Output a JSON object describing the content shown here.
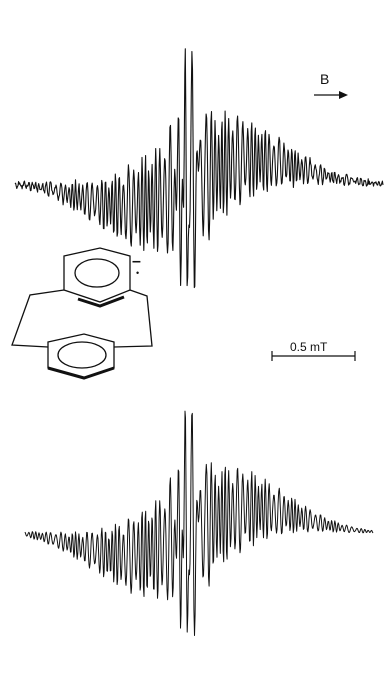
{
  "chart_data": {
    "type": "line",
    "title": "",
    "xlabel": "",
    "ylabel": "",
    "annotations": {
      "field_direction": "B",
      "scale_bar": "0.5 mT",
      "radical_sign": "–",
      "radical_dot": "•"
    },
    "series": [
      {
        "role": "experimental",
        "noise": true
      },
      {
        "role": "simulated",
        "noise": false
      }
    ],
    "grid": false,
    "legend": "none"
  },
  "colors": {
    "trace": "#111111",
    "background": "#ffffff"
  }
}
